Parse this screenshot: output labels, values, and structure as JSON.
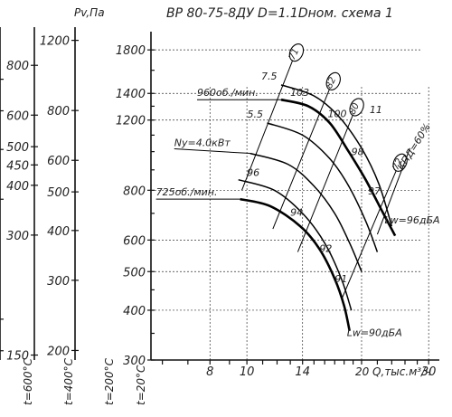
{
  "chart_data": {
    "type": "line",
    "title": "ВР 80-75-8ДУ D=1.1Dном. схема 1",
    "ylabel": "Pv,Па",
    "xlabel": "Q,тыс.м³/ч",
    "x_log": true,
    "y_log": true,
    "xlim": [
      5.6,
      32
    ],
    "ylim": [
      300,
      2000
    ],
    "x_ticks": [
      8,
      10,
      14,
      20,
      30
    ],
    "x_tick_labels": [
      "8",
      "10",
      "14",
      "20",
      "30"
    ],
    "x_axis_label_text": "20 Q,тыс.м³/ч",
    "y_ticks": [
      300,
      400,
      500,
      600,
      800,
      1200,
      1400,
      1800
    ],
    "side_scales": [
      {
        "label": "t=20°C",
        "ticks": [
          300,
          400,
          500,
          600,
          800,
          1200,
          1400,
          1800
        ]
      },
      {
        "label": "t=200°C",
        "ticks": [
          200,
          300,
          400,
          500,
          600,
          800,
          1200
        ]
      },
      {
        "label": "t=400°C",
        "ticks": [
          150,
          300,
          400,
          450,
          500,
          600,
          800
        ]
      },
      {
        "label": "t=600°C",
        "ticks": [
          125,
          150,
          300,
          400,
          500,
          600
        ]
      }
    ],
    "side_header": "Pv,Па",
    "series": [
      {
        "name": "960об./мин.",
        "role": "speed",
        "points": [
          [
            12.3,
            1350
          ],
          [
            14.5,
            1300
          ],
          [
            16.5,
            1180
          ],
          [
            18.5,
            1000
          ],
          [
            20.5,
            850
          ],
          [
            22.8,
            700
          ],
          [
            24.5,
            615
          ]
        ]
      },
      {
        "name": "725об./мин.",
        "role": "speed",
        "points": [
          [
            9.6,
            760
          ],
          [
            11.5,
            730
          ],
          [
            13.8,
            650
          ],
          [
            15.5,
            570
          ],
          [
            17.0,
            480
          ],
          [
            18.0,
            410
          ],
          [
            18.6,
            355
          ]
        ]
      },
      {
        "name": "",
        "role": "power",
        "label": "7.5",
        "points": [
          [
            12.3,
            1470
          ],
          [
            15.0,
            1380
          ],
          [
            17.5,
            1220
          ],
          [
            20.0,
            1020
          ],
          [
            22.2,
            830
          ],
          [
            24.0,
            650
          ]
        ]
      },
      {
        "name": "",
        "role": "power",
        "label": "5.5",
        "points": [
          [
            11.3,
            1180
          ],
          [
            14.0,
            1100
          ],
          [
            16.5,
            960
          ],
          [
            18.5,
            820
          ],
          [
            20.5,
            670
          ],
          [
            22.0,
            560
          ]
        ]
      },
      {
        "name": "",
        "role": "power",
        "label": "Ny=4.0кВт",
        "points": [
          [
            10.2,
            990
          ],
          [
            12.8,
            930
          ],
          [
            15.0,
            820
          ],
          [
            17.0,
            700
          ],
          [
            18.6,
            590
          ],
          [
            20.0,
            500
          ]
        ]
      },
      {
        "name": "",
        "role": "power",
        "label": "3",
        "points": [
          [
            9.5,
            850
          ],
          [
            11.8,
            800
          ],
          [
            14.0,
            700
          ],
          [
            16.0,
            590
          ],
          [
            17.7,
            480
          ],
          [
            18.8,
            400
          ]
        ]
      },
      {
        "name": "",
        "role": "efficiency",
        "label": "71",
        "points": [
          [
            9.7,
            800
          ],
          [
            13.2,
            1700
          ]
        ]
      },
      {
        "name": "",
        "role": "efficiency",
        "label": "82",
        "points": [
          [
            11.7,
            640
          ],
          [
            16.5,
            1440
          ]
        ]
      },
      {
        "name": "",
        "role": "efficiency",
        "label": "80",
        "points": [
          [
            13.6,
            560
          ],
          [
            19.0,
            1240
          ]
        ]
      },
      {
        "name": "",
        "role": "efficiency",
        "label": "72",
        "points": [
          [
            17.8,
            430
          ],
          [
            24.7,
            900
          ]
        ]
      },
      {
        "name": "",
        "role": "efficiency",
        "label": "КПД=60%",
        "points": [
          [
            22.0,
            620
          ],
          [
            26.8,
            1020
          ]
        ]
      }
    ],
    "labels": [
      {
        "text": "103",
        "x": 13.0,
        "y": 1380
      },
      {
        "text": "100",
        "x": 16.3,
        "y": 1220
      },
      {
        "text": "98",
        "x": 18.8,
        "y": 980
      },
      {
        "text": "97",
        "x": 20.8,
        "y": 780
      },
      {
        "text": "96",
        "x": 10.0,
        "y": 870
      },
      {
        "text": "94",
        "x": 13.0,
        "y": 690
      },
      {
        "text": "92",
        "x": 15.5,
        "y": 560
      },
      {
        "text": "91",
        "x": 17.0,
        "y": 470
      },
      {
        "text": "11",
        "x": 21.0,
        "y": 1250
      },
      {
        "text": "Lw=96дБА",
        "x": 23.0,
        "y": 660
      },
      {
        "text": "Lw=90дБА",
        "x": 18.3,
        "y": 345
      }
    ],
    "grid": true,
    "legend": "none"
  }
}
